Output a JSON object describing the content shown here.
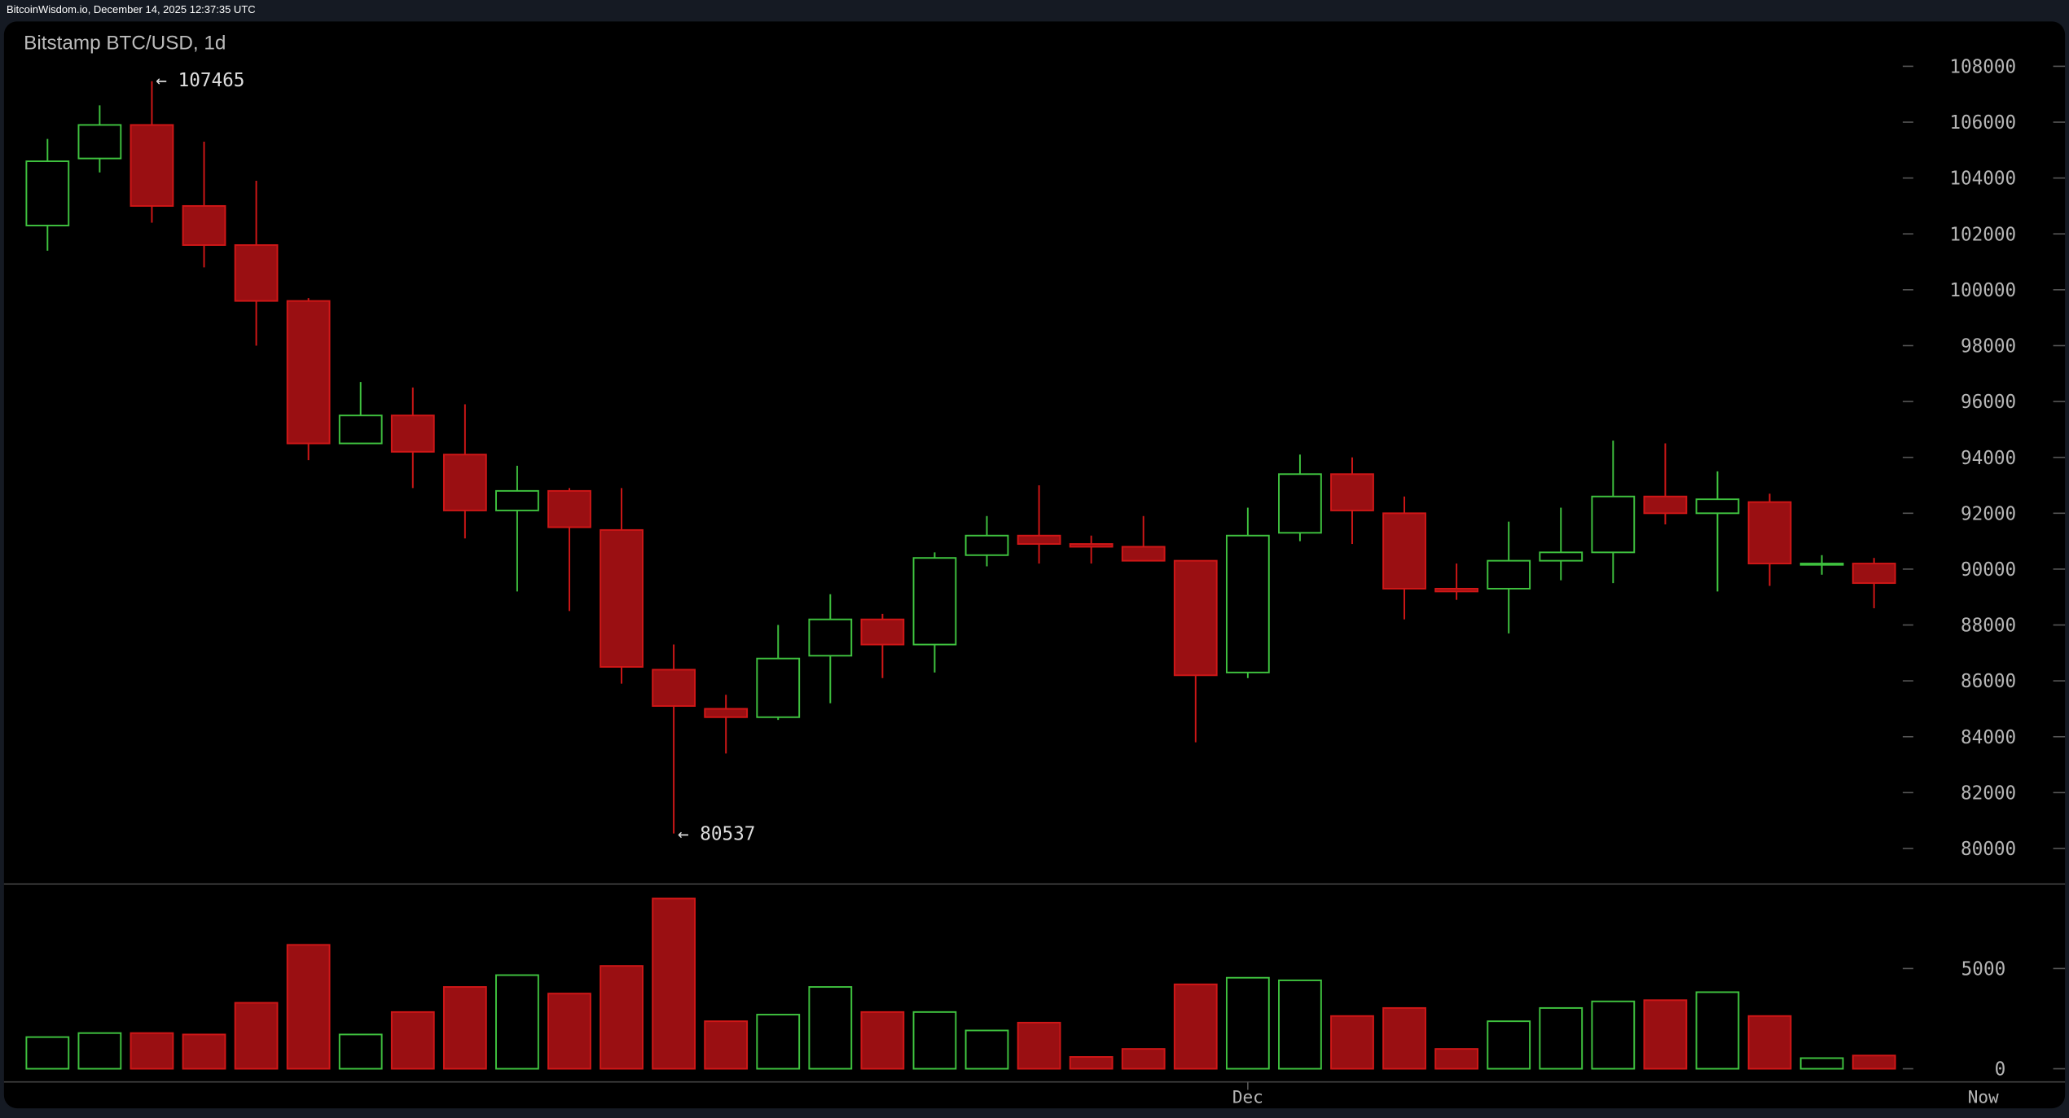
{
  "header": {
    "source_timestamp": "BitcoinWisdom.io, December 14, 2025 12:37:35 UTC"
  },
  "chart_data": {
    "type": "candlestick",
    "title": "Bitstamp BTC/USD, 1d",
    "price_axis": {
      "ticks": [
        "108000",
        "106000",
        "104000",
        "102000",
        "100000",
        "98000",
        "96000",
        "94000",
        "92000",
        "90000",
        "88000",
        "86000",
        "84000",
        "82000",
        "80000"
      ],
      "range": [
        80000,
        108000
      ]
    },
    "volume_axis": {
      "ticks": [
        "5000",
        "0"
      ],
      "range": [
        0,
        5000
      ]
    },
    "x_labels": [
      {
        "label": "Dec",
        "index": 23
      },
      {
        "label": "Now",
        "index": 38
      }
    ],
    "annotations": {
      "high_label": "← 107465",
      "high_index": 2,
      "low_label": "← 80537",
      "low_index": 12
    },
    "colors": {
      "up": "#3fc23f",
      "down": "#d01717",
      "down_fill": "#9a0f12",
      "grid": "#444444",
      "text": "#b5b5b5"
    },
    "candles": [
      {
        "o": 102300,
        "h": 105400,
        "l": 101400,
        "c": 104600,
        "v": 1580
      },
      {
        "o": 104700,
        "h": 106600,
        "l": 104200,
        "c": 105900,
        "v": 1780
      },
      {
        "o": 105900,
        "h": 107465,
        "l": 102400,
        "c": 103000,
        "v": 1780
      },
      {
        "o": 103000,
        "h": 105300,
        "l": 100800,
        "c": 101600,
        "v": 1710
      },
      {
        "o": 101600,
        "h": 103900,
        "l": 98000,
        "c": 99600,
        "v": 3290
      },
      {
        "o": 99600,
        "h": 99700,
        "l": 93900,
        "c": 94500,
        "v": 6180
      },
      {
        "o": 94500,
        "h": 96700,
        "l": 94500,
        "c": 95500,
        "v": 1710
      },
      {
        "o": 95500,
        "h": 96500,
        "l": 92900,
        "c": 94200,
        "v": 2830
      },
      {
        "o": 94100,
        "h": 95900,
        "l": 91100,
        "c": 92100,
        "v": 4080
      },
      {
        "o": 92100,
        "h": 93700,
        "l": 89200,
        "c": 92800,
        "v": 4670
      },
      {
        "o": 92800,
        "h": 92900,
        "l": 88500,
        "c": 91500,
        "v": 3750
      },
      {
        "o": 91400,
        "h": 92900,
        "l": 85900,
        "c": 86500,
        "v": 5130
      },
      {
        "o": 86400,
        "h": 87300,
        "l": 80537,
        "c": 85100,
        "v": 8490
      },
      {
        "o": 85000,
        "h": 85500,
        "l": 83400,
        "c": 84700,
        "v": 2370
      },
      {
        "o": 84700,
        "h": 88000,
        "l": 84600,
        "c": 86800,
        "v": 2700
      },
      {
        "o": 86900,
        "h": 89100,
        "l": 85200,
        "c": 88200,
        "v": 4080
      },
      {
        "o": 88200,
        "h": 88400,
        "l": 86100,
        "c": 87300,
        "v": 2830
      },
      {
        "o": 87300,
        "h": 90600,
        "l": 86300,
        "c": 90400,
        "v": 2830
      },
      {
        "o": 90500,
        "h": 91900,
        "l": 90100,
        "c": 91200,
        "v": 1910
      },
      {
        "o": 91200,
        "h": 93000,
        "l": 90200,
        "c": 90900,
        "v": 2300
      },
      {
        "o": 90900,
        "h": 91200,
        "l": 90200,
        "c": 90800,
        "v": 590
      },
      {
        "o": 90800,
        "h": 91900,
        "l": 90300,
        "c": 90300,
        "v": 990
      },
      {
        "o": 90300,
        "h": 90300,
        "l": 83800,
        "c": 86200,
        "v": 4210
      },
      {
        "o": 86300,
        "h": 92200,
        "l": 86100,
        "c": 91200,
        "v": 4540
      },
      {
        "o": 91300,
        "h": 94100,
        "l": 91000,
        "c": 93400,
        "v": 4410
      },
      {
        "o": 93400,
        "h": 94000,
        "l": 90900,
        "c": 92100,
        "v": 2630
      },
      {
        "o": 92000,
        "h": 92600,
        "l": 88200,
        "c": 89300,
        "v": 3030
      },
      {
        "o": 89300,
        "h": 90200,
        "l": 88900,
        "c": 89200,
        "v": 990
      },
      {
        "o": 89300,
        "h": 91700,
        "l": 87700,
        "c": 90300,
        "v": 2370
      },
      {
        "o": 90300,
        "h": 92200,
        "l": 89600,
        "c": 90600,
        "v": 3030
      },
      {
        "o": 90600,
        "h": 94600,
        "l": 89500,
        "c": 92600,
        "v": 3360
      },
      {
        "o": 92600,
        "h": 94500,
        "l": 91600,
        "c": 92000,
        "v": 3420
      },
      {
        "o": 92000,
        "h": 93500,
        "l": 89200,
        "c": 92500,
        "v": 3820
      },
      {
        "o": 92400,
        "h": 92700,
        "l": 89400,
        "c": 90200,
        "v": 2630
      },
      {
        "o": 90200,
        "h": 90500,
        "l": 89800,
        "c": 90200,
        "v": 530
      },
      {
        "o": 90200,
        "h": 90400,
        "l": 88600,
        "c": 89500,
        "v": 660
      }
    ]
  }
}
